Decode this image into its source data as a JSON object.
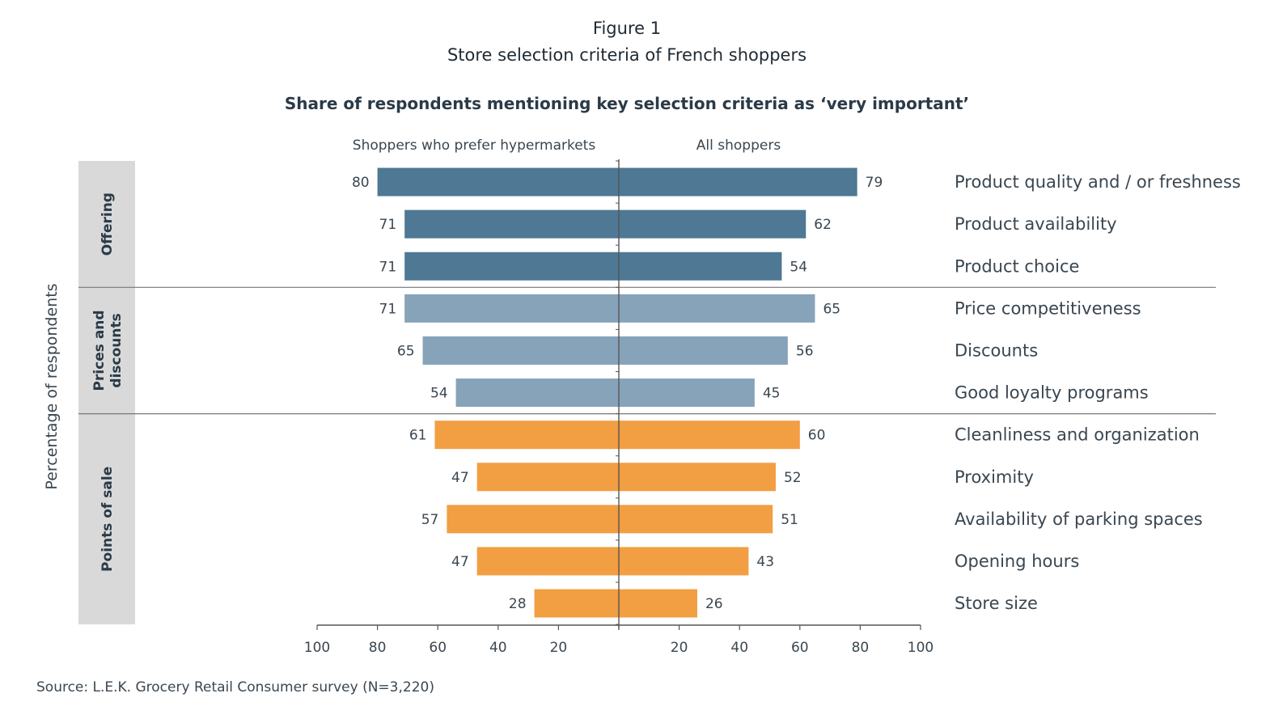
{
  "figure_label": "Figure 1",
  "colors": {
    "offering": "#4e7894",
    "prices": "#86a3b9",
    "points": "#f29e42",
    "band": "#d9d9d9",
    "axis": "#555555"
  },
  "chart_data": {
    "type": "bar",
    "orientation": "horizontal-diverging",
    "title": "Store selection criteria of French shoppers",
    "subtitle": "Share of respondents mentioning key selection criteria as ‘very important’",
    "ylabel": "Percentage of respondents",
    "left_header": "Shoppers who prefer hypermarkets",
    "right_header": "All shoppers",
    "xlim_left": [
      0,
      100
    ],
    "xlim_right": [
      0,
      100
    ],
    "tick_labels_left": [
      "100",
      "80",
      "60",
      "40",
      "20"
    ],
    "tick_labels_right": [
      "20",
      "40",
      "60",
      "80",
      "100"
    ],
    "groups": [
      {
        "name": "Offering",
        "color_key": "offering",
        "start": 0,
        "count": 3
      },
      {
        "name": "Prices and discounts",
        "lines": [
          "Prices and",
          "discounts"
        ],
        "color_key": "prices",
        "start": 3,
        "count": 3
      },
      {
        "name": "Points of sale",
        "color_key": "points",
        "start": 6,
        "count": 5
      }
    ],
    "categories": [
      "Product quality and / or freshness",
      "Product availability",
      "Product choice",
      "Price competitiveness",
      "Discounts",
      "Good loyalty programs",
      "Cleanliness and organization",
      "Proximity",
      "Availability of parking spaces",
      "Opening hours",
      "Store size"
    ],
    "series": [
      {
        "name": "Shoppers who prefer hypermarkets",
        "values": [
          80,
          71,
          71,
          71,
          65,
          54,
          61,
          47,
          57,
          47,
          28
        ]
      },
      {
        "name": "All shoppers",
        "values": [
          79,
          62,
          54,
          65,
          56,
          45,
          60,
          52,
          51,
          43,
          26
        ]
      }
    ],
    "grid": false,
    "source": "Source: L.E.K. Grocery Retail Consumer survey (N=3,220)"
  }
}
